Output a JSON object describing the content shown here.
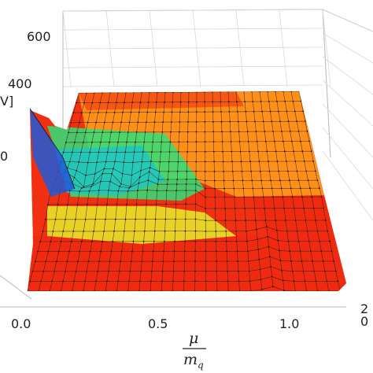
{
  "chart_data": {
    "type": "surface3d",
    "x_label": {
      "numerator": "μ",
      "denominator": "m",
      "denominator_sub": "q"
    },
    "x_ticks": [
      "0.0",
      "0.5",
      "1.0"
    ],
    "x_range": [
      0.0,
      1.2
    ],
    "z_ticks": [
      "600",
      "400"
    ],
    "z_range": [
      100,
      650
    ],
    "z_axis_label_fragment": "V]",
    "y_tick_fragments": [
      "2",
      "0"
    ],
    "colormap": [
      "#1e5bd8",
      "#19c6d2",
      "#2ee07a",
      "#e6ee2a",
      "#ff9a1a",
      "#ee2a10"
    ],
    "surface_rows_near_to_far": [
      {
        "segments": [
          [
            0.0,
            170
          ],
          [
            0.2,
            175
          ],
          [
            0.5,
            178
          ],
          [
            0.95,
            170
          ],
          [
            1.0,
            162
          ],
          [
            1.2,
            170
          ]
        ]
      },
      {
        "segments": [
          [
            0.0,
            255
          ],
          [
            0.2,
            275
          ],
          [
            0.45,
            300
          ],
          [
            0.7,
            330
          ],
          [
            1.0,
            290
          ],
          [
            1.2,
            300
          ]
        ]
      },
      {
        "segments": [
          [
            0.0,
            390
          ],
          [
            0.08,
            520
          ],
          [
            0.15,
            430
          ],
          [
            0.35,
            420
          ],
          [
            0.55,
            400
          ],
          [
            1.2,
            400
          ]
        ]
      }
    ],
    "grid": true
  }
}
